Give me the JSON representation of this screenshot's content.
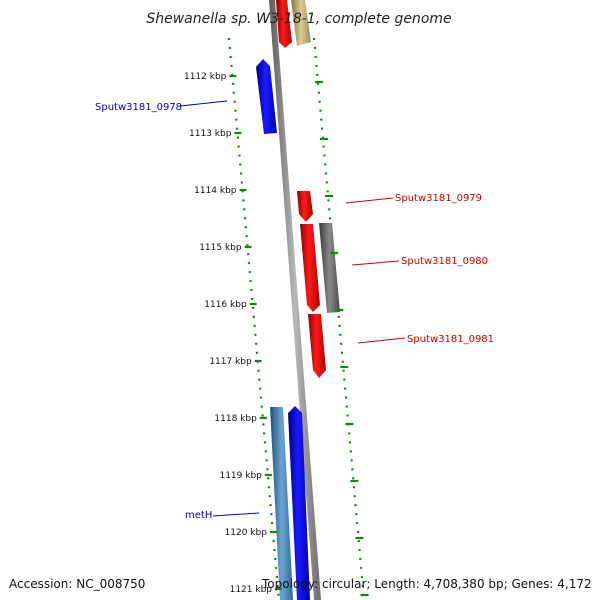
{
  "title": "Shewanella sp. W3-18-1, complete genome",
  "footer": {
    "accession": "Accession: NC_008750",
    "topology": "Topology: circular; Length: 4,708,380 bp; Genes: 4,172"
  },
  "ticks": [
    "1112 kbp",
    "1113 kbp",
    "1114 kbp",
    "1115 kbp",
    "1116 kbp",
    "1117 kbp",
    "1118 kbp",
    "1119 kbp",
    "1120 kbp",
    "1121 kbp"
  ],
  "gene_labels": [
    {
      "text": "Sputw3181_0978",
      "color": "#0000cc"
    },
    {
      "text": "Sputw3181_0979",
      "color": "#cc0000"
    },
    {
      "text": "Sputw3181_0980",
      "color": "#cc0000"
    },
    {
      "text": "Sputw3181_0981",
      "color": "#cc0000"
    },
    {
      "text": "metH",
      "color": "#0000cc"
    }
  ],
  "colors": {
    "forward": "#0000ee",
    "reverse": "#ee0000",
    "grey_feature": "#666666",
    "tan_feature": "#bdb47a",
    "steel_feature": "#4a86b8",
    "backbone": "#8a8a8a",
    "ruler_dots": "#118811"
  }
}
